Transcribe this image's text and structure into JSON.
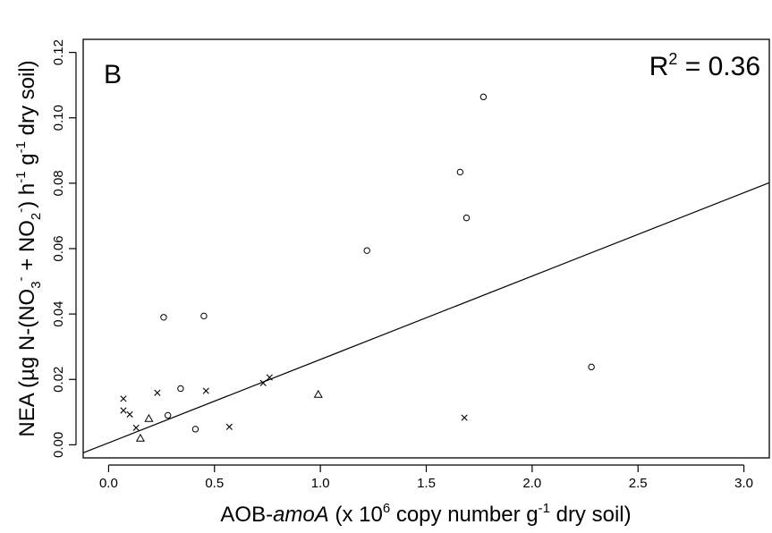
{
  "chart_data": {
    "type": "scatter",
    "panel_label": "B",
    "r2_label": {
      "prefix": "R",
      "sup": "2",
      "suffix": " = 0.36"
    },
    "xlabel": {
      "pre": "AOB-",
      "ital": "amoA",
      "mid": " (x 10",
      "sup": "6",
      "post": " copy number g",
      "sup2": "-1",
      "post2": " dry soil)"
    },
    "ylabel": {
      "p1": "NEA (µg N-(NO",
      "sub1": "3",
      "sup1": "-",
      "p2": " + NO",
      "sub2": "2",
      "sup2": "-",
      "p3": ") h",
      "sup3": "-1",
      "p4": " g",
      "sup4": "-1",
      "p5": " dry soil)"
    },
    "xlim": [
      -0.12,
      3.12
    ],
    "ylim": [
      -0.004,
      0.124
    ],
    "xticks": [
      {
        "v": 0.0,
        "label": "0.0"
      },
      {
        "v": 0.5,
        "label": "0.5"
      },
      {
        "v": 1.0,
        "label": "1.0"
      },
      {
        "v": 1.5,
        "label": "1.5"
      },
      {
        "v": 2.0,
        "label": "2.0"
      },
      {
        "v": 2.5,
        "label": "2.5"
      },
      {
        "v": 3.0,
        "label": "3.0"
      }
    ],
    "yticks": [
      {
        "v": 0.0,
        "label": "0.00"
      },
      {
        "v": 0.02,
        "label": "0.02"
      },
      {
        "v": 0.04,
        "label": "0.04"
      },
      {
        "v": 0.06,
        "label": "0.06"
      },
      {
        "v": 0.08,
        "label": "0.08"
      },
      {
        "v": 0.1,
        "label": "0.10"
      },
      {
        "v": 0.12,
        "label": "0.12"
      }
    ],
    "grid": false,
    "series": [
      {
        "marker": "circle",
        "points": [
          {
            "x": 0.26,
            "y": 0.039
          },
          {
            "x": 0.45,
            "y": 0.0394
          },
          {
            "x": 0.34,
            "y": 0.0172
          },
          {
            "x": 0.28,
            "y": 0.009
          },
          {
            "x": 0.41,
            "y": 0.0048
          },
          {
            "x": 1.22,
            "y": 0.0594
          },
          {
            "x": 1.66,
            "y": 0.0834
          },
          {
            "x": 1.69,
            "y": 0.0694
          },
          {
            "x": 1.77,
            "y": 0.1064
          },
          {
            "x": 2.28,
            "y": 0.0238
          }
        ]
      },
      {
        "marker": "cross",
        "points": [
          {
            "x": 0.07,
            "y": 0.0141
          },
          {
            "x": 0.07,
            "y": 0.0105
          },
          {
            "x": 0.1,
            "y": 0.0093
          },
          {
            "x": 0.13,
            "y": 0.0052
          },
          {
            "x": 0.23,
            "y": 0.0159
          },
          {
            "x": 0.46,
            "y": 0.0165
          },
          {
            "x": 0.57,
            "y": 0.0055
          },
          {
            "x": 0.73,
            "y": 0.0189
          },
          {
            "x": 0.76,
            "y": 0.0206
          },
          {
            "x": 1.68,
            "y": 0.0083
          }
        ]
      },
      {
        "marker": "triangle",
        "points": [
          {
            "x": 0.15,
            "y": 0.002
          },
          {
            "x": 0.19,
            "y": 0.008
          },
          {
            "x": 0.99,
            "y": 0.0154
          }
        ]
      }
    ],
    "fit_line": {
      "intercept": 0.0006,
      "slope": 0.0255
    }
  }
}
